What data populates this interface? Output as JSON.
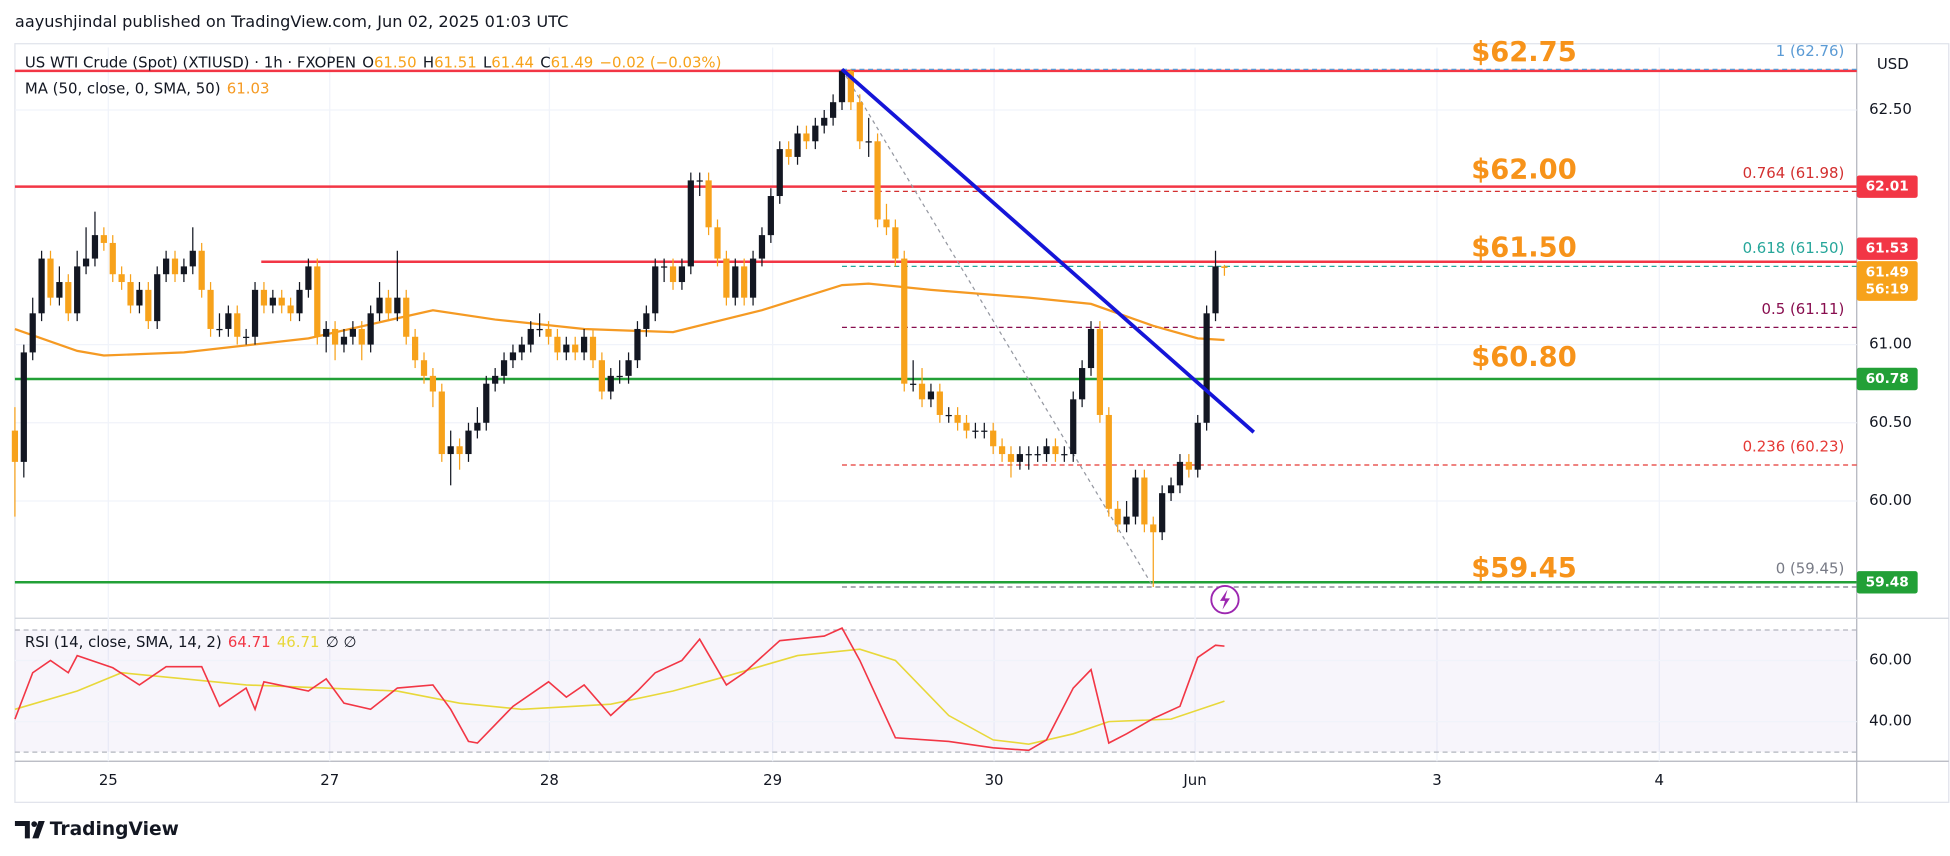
{
  "header": "aayushjindal published on TradingView.com, Jun 02, 2025 01:03 UTC",
  "footer": "TradingView",
  "chart_data": {
    "type": "candlestick",
    "symbol": "US WTI Crude (Spot) (XTIUSD) · 1h · FXOPEN",
    "ohlc_legend": [
      {
        "key": "O",
        "value": "61.50"
      },
      {
        "key": "H",
        "value": "61.51"
      },
      {
        "key": "L",
        "value": "61.44"
      },
      {
        "key": "C",
        "value": "61.49"
      }
    ],
    "change": "−0.02 (−0.03%)",
    "currency": "USD",
    "up_color": "#131722",
    "down_color": "#f7a21b",
    "x": [
      0,
      1,
      2,
      3,
      4,
      5,
      6,
      7,
      8,
      9,
      10,
      11,
      12,
      13,
      14,
      15,
      16,
      17,
      18,
      19,
      20,
      21,
      22,
      23,
      24,
      25,
      26,
      27,
      28,
      29,
      30,
      31,
      32,
      33,
      34,
      35,
      36,
      37,
      38,
      39,
      40,
      41,
      42,
      43,
      44,
      45,
      46,
      47,
      48,
      49,
      50,
      51,
      52,
      53,
      54,
      55,
      56,
      57,
      58,
      59,
      60,
      61,
      62,
      63,
      64,
      65,
      66,
      67,
      68,
      69,
      70,
      71,
      72,
      73,
      74,
      75,
      76,
      77,
      78,
      79,
      80,
      81,
      82,
      83,
      84,
      85,
      86,
      87,
      88,
      89,
      90,
      91,
      92,
      93,
      94,
      95,
      96,
      97,
      98,
      99,
      100,
      101,
      102,
      103,
      104,
      105,
      106,
      107,
      108,
      109,
      110,
      111,
      112,
      113,
      114,
      115,
      116,
      117,
      118,
      119,
      120,
      121,
      122,
      123,
      124,
      125,
      126,
      127,
      128,
      129,
      130,
      131,
      132,
      133,
      134,
      135,
      136
    ],
    "open": [
      60.45,
      60.25,
      60.95,
      61.2,
      61.55,
      61.3,
      61.4,
      61.2,
      61.5,
      61.55,
      61.7,
      61.65,
      61.45,
      61.4,
      61.25,
      61.35,
      61.15,
      61.45,
      61.55,
      61.45,
      61.5,
      61.6,
      61.35,
      61.1,
      61.1,
      61.2,
      61.05,
      61.05,
      61.35,
      61.25,
      61.3,
      61.25,
      61.2,
      61.35,
      61.5,
      61.05,
      61.1,
      61.0,
      61.05,
      61.1,
      61.0,
      61.2,
      61.3,
      61.2,
      61.3,
      61.05,
      60.9,
      60.8,
      60.7,
      60.3,
      60.35,
      60.3,
      60.45,
      60.5,
      60.75,
      60.8,
      60.9,
      60.95,
      61.0,
      61.1,
      61.1,
      61.05,
      60.95,
      61.0,
      60.95,
      61.05,
      60.9,
      60.7,
      60.8,
      60.8,
      60.9,
      61.1,
      61.2,
      61.5,
      61.5,
      61.4,
      61.5,
      62.05,
      62.05,
      61.75,
      61.55,
      61.3,
      61.5,
      61.3,
      61.55,
      61.7,
      61.95,
      62.25,
      62.2,
      62.35,
      62.3,
      62.4,
      62.45,
      62.55,
      62.75,
      62.55,
      62.3,
      62.3,
      61.8,
      61.75,
      61.55,
      60.75,
      60.75,
      60.65,
      60.7,
      60.55,
      60.55,
      60.5,
      60.45,
      60.45,
      60.45,
      60.35,
      60.3,
      60.25,
      60.3,
      60.3,
      60.3,
      60.35,
      60.3,
      60.3,
      60.65,
      60.85,
      61.1,
      60.55,
      59.95,
      59.85,
      59.9,
      60.15,
      59.85,
      59.8,
      60.05,
      60.1,
      60.25,
      60.2,
      60.5,
      61.2,
      61.5
    ],
    "high": [
      60.6,
      61.0,
      61.3,
      61.6,
      61.6,
      61.5,
      61.45,
      61.6,
      61.75,
      61.85,
      61.75,
      61.7,
      61.5,
      61.45,
      61.4,
      61.4,
      61.5,
      61.6,
      61.6,
      61.55,
      61.75,
      61.65,
      61.4,
      61.2,
      61.25,
      61.25,
      61.1,
      61.4,
      61.4,
      61.35,
      61.35,
      61.3,
      61.4,
      61.55,
      61.55,
      61.15,
      61.15,
      61.1,
      61.15,
      61.15,
      61.25,
      61.4,
      61.35,
      61.6,
      61.35,
      61.1,
      60.95,
      60.85,
      60.75,
      60.45,
      60.4,
      60.5,
      60.6,
      60.8,
      60.85,
      60.95,
      61.0,
      61.05,
      61.15,
      61.2,
      61.15,
      61.1,
      61.05,
      61.05,
      61.1,
      61.1,
      60.95,
      60.85,
      60.9,
      60.95,
      61.15,
      61.25,
      61.55,
      61.55,
      61.55,
      61.55,
      62.1,
      62.1,
      62.1,
      61.8,
      61.6,
      61.55,
      61.55,
      61.6,
      61.75,
      62.0,
      62.3,
      62.3,
      62.4,
      62.4,
      62.45,
      62.5,
      62.6,
      62.76,
      62.76,
      62.6,
      62.45,
      62.35,
      61.9,
      61.8,
      61.6,
      60.9,
      60.85,
      60.75,
      60.75,
      60.6,
      60.6,
      60.55,
      60.5,
      60.5,
      60.5,
      60.4,
      60.35,
      60.35,
      60.35,
      60.35,
      60.4,
      60.4,
      60.35,
      60.7,
      60.9,
      61.15,
      61.15,
      60.6,
      60.0,
      60.0,
      60.2,
      60.2,
      59.9,
      60.1,
      60.15,
      60.3,
      60.3,
      60.55,
      61.25,
      61.6,
      61.51
    ],
    "low": [
      59.9,
      60.15,
      60.9,
      61.15,
      61.25,
      61.25,
      61.15,
      61.15,
      61.45,
      61.5,
      61.6,
      61.4,
      61.35,
      61.2,
      61.2,
      61.1,
      61.1,
      61.4,
      61.4,
      61.4,
      61.45,
      61.3,
      61.05,
      61.05,
      61.05,
      61.0,
      61.0,
      61.0,
      61.2,
      61.2,
      61.2,
      61.15,
      61.15,
      61.3,
      61.0,
      60.95,
      60.9,
      60.95,
      61.0,
      60.9,
      60.95,
      61.15,
      61.15,
      61.15,
      61.0,
      60.85,
      60.75,
      60.6,
      60.25,
      60.1,
      60.2,
      60.25,
      60.4,
      60.45,
      60.7,
      60.75,
      60.85,
      60.9,
      60.95,
      61.05,
      61.0,
      60.9,
      60.9,
      60.9,
      60.9,
      60.85,
      60.65,
      60.65,
      60.75,
      60.75,
      60.85,
      61.05,
      61.15,
      61.4,
      61.35,
      61.35,
      61.45,
      61.95,
      61.7,
      61.5,
      61.25,
      61.25,
      61.25,
      61.25,
      61.5,
      61.65,
      61.9,
      62.15,
      62.15,
      62.25,
      62.25,
      62.35,
      62.4,
      62.5,
      62.5,
      62.25,
      62.2,
      61.75,
      61.7,
      61.5,
      60.7,
      60.7,
      60.6,
      60.6,
      60.5,
      60.5,
      60.45,
      60.4,
      60.4,
      60.4,
      60.3,
      60.25,
      60.15,
      60.2,
      60.2,
      60.25,
      60.25,
      60.25,
      60.25,
      60.25,
      60.6,
      60.8,
      60.5,
      59.9,
      59.8,
      59.8,
      59.85,
      59.8,
      59.45,
      59.75,
      60.0,
      60.05,
      60.15,
      60.15,
      60.45,
      61.15,
      61.44
    ],
    "close": [
      60.25,
      60.95,
      61.2,
      61.55,
      61.3,
      61.4,
      61.2,
      61.5,
      61.55,
      61.7,
      61.65,
      61.45,
      61.4,
      61.25,
      61.35,
      61.15,
      61.45,
      61.55,
      61.45,
      61.5,
      61.6,
      61.35,
      61.1,
      61.1,
      61.2,
      61.05,
      61.05,
      61.35,
      61.25,
      61.3,
      61.25,
      61.2,
      61.35,
      61.5,
      61.05,
      61.1,
      61.0,
      61.05,
      61.1,
      61.0,
      61.2,
      61.3,
      61.2,
      61.3,
      61.05,
      60.9,
      60.8,
      60.7,
      60.3,
      60.35,
      60.3,
      60.45,
      60.5,
      60.75,
      60.8,
      60.9,
      60.95,
      61.0,
      61.1,
      61.1,
      61.05,
      60.95,
      61.0,
      60.95,
      61.05,
      60.9,
      60.7,
      60.8,
      60.8,
      60.9,
      61.1,
      61.2,
      61.5,
      61.5,
      61.4,
      61.5,
      62.05,
      62.05,
      61.75,
      61.55,
      61.3,
      61.5,
      61.3,
      61.55,
      61.7,
      61.95,
      62.25,
      62.2,
      62.35,
      62.3,
      62.4,
      62.45,
      62.55,
      62.75,
      62.55,
      62.3,
      62.3,
      61.8,
      61.75,
      61.55,
      60.75,
      60.75,
      60.65,
      60.7,
      60.55,
      60.55,
      60.5,
      60.45,
      60.45,
      60.45,
      60.35,
      60.3,
      60.25,
      60.3,
      60.3,
      60.3,
      60.35,
      60.3,
      60.3,
      60.65,
      60.85,
      61.1,
      60.55,
      59.95,
      59.85,
      59.9,
      60.15,
      59.85,
      59.8,
      60.05,
      60.1,
      60.25,
      60.2,
      60.5,
      61.2,
      61.5,
      61.49
    ],
    "xlim": [
      0,
      207.1
    ],
    "xticks": [
      {
        "value": 10.5,
        "label": "25"
      },
      {
        "value": 35.4,
        "label": "27"
      },
      {
        "value": 60.1,
        "label": "28"
      },
      {
        "value": 85.2,
        "label": "29"
      },
      {
        "value": 110.1,
        "label": "30"
      },
      {
        "value": 132.7,
        "label": "Jun"
      },
      {
        "value": 159.9,
        "label": "3"
      },
      {
        "value": 184.9,
        "label": "4"
      }
    ],
    "ylim": [
      59.25,
      62.9
    ],
    "yticks": [
      {
        "value": 62.5,
        "label": "62.50"
      },
      {
        "value": 61,
        "label": "61.00"
      },
      {
        "value": 60.5,
        "label": "60.50"
      },
      {
        "value": 60,
        "label": "60.00"
      }
    ],
    "grid": true,
    "ma": {
      "name": "MA (50, close, 0, SMA, 50)",
      "last": "61.03",
      "color": "#f59a23",
      "x": [
        0,
        7,
        10,
        19,
        33,
        47,
        54,
        64,
        74,
        84,
        93,
        96,
        103,
        114,
        121,
        128,
        133,
        136
      ],
      "values": [
        61.1,
        60.96,
        60.93,
        60.95,
        61.04,
        61.22,
        61.16,
        61.1,
        61.08,
        61.22,
        61.38,
        61.39,
        61.35,
        61.3,
        61.26,
        61.12,
        61.04,
        61.03
      ]
    },
    "levels": [
      {
        "value": 62.75,
        "color": "#f23645"
      },
      {
        "value": 62.01,
        "label": "62.01",
        "color": "#f23645"
      },
      {
        "value": 61.53,
        "label": "61.53",
        "color": "#f23645",
        "start": 27.7
      },
      {
        "value": 60.78,
        "label": "60.78",
        "color": "#22a037"
      },
      {
        "value": 59.48,
        "label": "59.48",
        "color": "#22a037"
      }
    ],
    "last_price": {
      "value": 61.49,
      "label": "61.49",
      "countdown": "56:19",
      "color": "#f7a21b"
    },
    "annotation_color": "#f7931a",
    "annotations": [
      {
        "value": 62.75,
        "label": "$62.75"
      },
      {
        "value": 62,
        "label": "$62.00"
      },
      {
        "value": 61.5,
        "label": "$61.50"
      },
      {
        "value": 60.8,
        "label": "$60.80"
      },
      {
        "value": 59.45,
        "label": "$59.45"
      }
    ],
    "fib": {
      "from": {
        "x": 93,
        "y": 62.76
      },
      "to": {
        "x": 128,
        "y": 59.45
      },
      "levels": [
        {
          "value": 62.76,
          "label": "1 (62.76)",
          "color": "#5b9bd5"
        },
        {
          "value": 61.98,
          "label": "0.764 (61.98)",
          "color": "#d32f2f"
        },
        {
          "value": 61.5,
          "label": "0.618 (61.50)",
          "color": "#26a69a"
        },
        {
          "value": 61.11,
          "label": "0.5 (61.11)",
          "color": "#880e4f"
        },
        {
          "value": 60.23,
          "label": "0.236 (60.23)",
          "color": "#e53935"
        },
        {
          "value": 59.45,
          "label": "0 (59.45)",
          "color": "#787b86"
        }
      ]
    },
    "trendline": {
      "x": [
        93,
        139.3
      ],
      "y": [
        62.76,
        60.44
      ],
      "color": "#1515d8"
    },
    "rsi": {
      "name": "RSI (14, close, SMA, 14, 2)",
      "last": "64.71",
      "ma_last": "46.71",
      "na": "∅ ∅",
      "color": "#f23645",
      "ma_color": "#e8d83a",
      "ylim": [
        27,
        72.6
      ],
      "yticks": [
        {
          "value": 60,
          "label": "60.00"
        },
        {
          "value": 40,
          "label": "40.00"
        }
      ],
      "band": [
        30,
        70
      ],
      "x": [
        0,
        2,
        4,
        6,
        7,
        11,
        14,
        17,
        21,
        23,
        26,
        27,
        28,
        33,
        35,
        37,
        40,
        43,
        47,
        49,
        51,
        52,
        56,
        60,
        62,
        64,
        67,
        70,
        72,
        75,
        77,
        80,
        82,
        86,
        91,
        93,
        95,
        99,
        105,
        110,
        114,
        116,
        119,
        121,
        123,
        125,
        128,
        131,
        133,
        135,
        136
      ],
      "values": [
        40.8,
        56,
        60,
        56,
        61.6,
        57.6,
        52,
        58,
        58,
        45,
        51,
        44,
        53,
        50,
        54,
        46,
        44,
        51,
        52,
        44,
        33.5,
        33,
        45,
        53,
        48,
        52,
        42,
        50,
        56,
        60,
        67,
        52,
        56,
        66.5,
        68,
        70.6,
        60,
        34.7,
        33.5,
        31.4,
        30.6,
        34,
        51,
        57,
        33,
        36,
        41,
        45,
        61,
        65,
        64.71
      ],
      "ma_x": [
        0,
        7,
        12,
        19,
        26,
        35,
        43,
        50,
        57,
        67,
        74,
        79,
        88,
        95,
        99,
        105,
        110,
        114,
        119,
        123,
        130,
        136
      ],
      "ma_values": [
        44,
        50,
        56,
        54,
        52,
        51,
        50,
        46,
        44,
        45.7,
        50,
        54,
        61.6,
        63.7,
        60,
        42,
        34,
        32.6,
        36,
        40,
        40.8,
        46.71
      ]
    }
  }
}
